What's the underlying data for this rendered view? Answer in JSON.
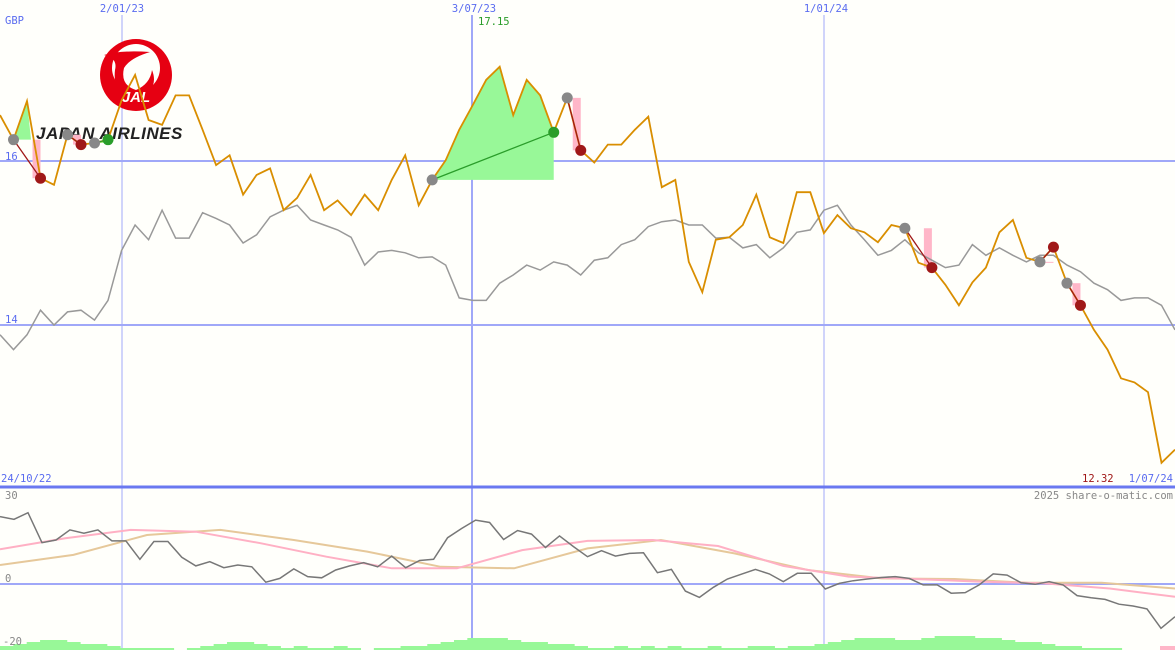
{
  "chart_data": {
    "type": "line",
    "currency_label": "GBP",
    "x_start_label": "24/10/22",
    "x_end_label": "1/07/24",
    "x_tick_labels": [
      "2/01/23",
      "3/07/23",
      "1/01/24"
    ],
    "y_tick_labels": [
      "16",
      "14"
    ],
    "y_ticks": [
      16,
      14
    ],
    "high_label": "17.15",
    "last_label": "12.32",
    "watermark": "2025 share-o-matic.com",
    "colors": {
      "price": "#d98e00",
      "comparison": "#999999",
      "buy": "#2a9d2a",
      "sell": "#a01818",
      "neutral": "#888888",
      "gain_fill": "#98f898",
      "loss_fill": "#ffb6c8",
      "grid": "#a0a8f8",
      "axis": "#6a78f0"
    },
    "price": [
      16.56,
      16.26,
      16.73,
      15.79,
      15.71,
      16.32,
      16.2,
      16.22,
      16.26,
      16.74,
      17.05,
      16.5,
      16.44,
      16.8,
      16.8,
      16.38,
      15.95,
      16.07,
      15.59,
      15.83,
      15.91,
      15.4,
      15.55,
      15.83,
      15.4,
      15.52,
      15.34,
      15.59,
      15.4,
      15.77,
      16.07,
      15.46,
      15.77,
      16.01,
      16.38,
      16.68,
      16.99,
      17.15,
      16.56,
      16.99,
      16.8,
      16.35,
      16.77,
      16.13,
      15.98,
      16.2,
      16.2,
      16.38,
      16.54,
      15.68,
      15.77,
      14.77,
      14.4,
      15.04,
      15.07,
      15.22,
      15.59,
      15.07,
      15.0,
      15.62,
      15.62,
      15.12,
      15.34,
      15.18,
      15.13,
      15.01,
      15.22,
      15.18,
      14.76,
      14.7,
      14.49,
      14.24,
      14.52,
      14.7,
      15.13,
      15.28,
      14.82,
      14.77,
      14.95,
      14.51,
      14.24,
      13.94,
      13.7,
      13.35,
      13.3,
      13.18,
      12.32,
      12.48
    ],
    "comparison": [
      13.88,
      13.7,
      13.88,
      14.18,
      14.0,
      14.16,
      14.18,
      14.06,
      14.3,
      14.91,
      15.22,
      15.04,
      15.4,
      15.06,
      15.06,
      15.37,
      15.3,
      15.22,
      15.0,
      15.1,
      15.32,
      15.4,
      15.46,
      15.28,
      15.22,
      15.16,
      15.07,
      14.73,
      14.89,
      14.91,
      14.88,
      14.82,
      14.83,
      14.73,
      14.33,
      14.3,
      14.3,
      14.51,
      14.61,
      14.73,
      14.67,
      14.77,
      14.73,
      14.61,
      14.79,
      14.82,
      14.98,
      15.04,
      15.2,
      15.26,
      15.28,
      15.22,
      15.22,
      15.06,
      15.07,
      14.94,
      14.98,
      14.82,
      14.94,
      15.13,
      15.16,
      15.4,
      15.46,
      15.22,
      15.04,
      14.85,
      14.91,
      15.04,
      14.88,
      14.79,
      14.7,
      14.73,
      14.98,
      14.85,
      14.94,
      14.85,
      14.77,
      14.85,
      14.85,
      14.73,
      14.65,
      14.51,
      14.43,
      14.3,
      14.33,
      14.33,
      14.24,
      13.94
    ],
    "signals": [
      {
        "from": 1,
        "to": 3,
        "type": "sell"
      },
      {
        "from": 5,
        "to": 6,
        "type": "sell"
      },
      {
        "from": 7,
        "to": 8,
        "type": "buy"
      },
      {
        "from": 32,
        "to": 41,
        "type": "buy"
      },
      {
        "from": 42,
        "to": 43,
        "type": "sell"
      },
      {
        "from": 67,
        "to": 69,
        "type": "sell"
      },
      {
        "from": 77,
        "to": 78,
        "type": "sell"
      },
      {
        "from": 79,
        "to": 80,
        "type": "sell"
      }
    ],
    "oscillator": {
      "y_tick_labels": [
        "30",
        "0",
        "-20"
      ],
      "ylim": [
        -20,
        30
      ],
      "momentum": [
        22.7,
        21.8,
        24.0,
        13.9,
        14.8,
        18.2,
        17.1,
        18.2,
        14.5,
        14.5,
        8.3,
        14.3,
        14.3,
        9.0,
        6.1,
        7.5,
        5.5,
        6.4,
        5.8,
        0.6,
        1.9,
        5.1,
        2.5,
        2.1,
        4.7,
        6.1,
        7.2,
        5.8,
        9.4,
        5.5,
        7.9,
        8.3,
        15.6,
        18.7,
        21.5,
        20.7,
        15.0,
        18.0,
        16.8,
        12.3,
        16.2,
        12.6,
        9.2,
        11.2,
        9.4,
        10.3,
        10.5,
        3.8,
        4.9,
        -2.4,
        -4.5,
        -1.1,
        1.7,
        3.3,
        4.9,
        3.4,
        0.8,
        3.6,
        3.6,
        -1.7,
        0.2,
        1.1,
        1.7,
        2.2,
        2.5,
        1.9,
        -0.3,
        -0.3,
        -3.1,
        -2.9,
        -0.3,
        3.4,
        3.0,
        0.4,
        -0.1,
        0.8,
        -0.3,
        -3.9,
        -4.6,
        -5.2,
        -6.8,
        -7.4,
        -8.4,
        -14.9,
        -11.0
      ],
      "fast_avg": [
        11.7,
        15.4,
        18.2,
        17.6,
        13.7,
        9.2,
        5.3,
        5.3,
        11.4,
        14.5,
        14.8,
        12.8,
        6.1,
        2.5,
        1.7,
        0.8,
        0.2,
        -1.5,
        -4.3
      ],
      "slow_avg": [
        6.4,
        9.8,
        16.5,
        18.2,
        14.8,
        10.9,
        5.8,
        5.3,
        12.0,
        14.8,
        10.3,
        4.7,
        1.9,
        1.7,
        0.4,
        0.4,
        -1.5
      ],
      "colors": {
        "momentum": "#777777",
        "fast_avg": "#ffb0c4",
        "slow_avg": "#e6c89a",
        "volume": "#98f898"
      },
      "volume": [
        2,
        3,
        4,
        5,
        5,
        4,
        3,
        3,
        2,
        1,
        1,
        1,
        1,
        0,
        1,
        2,
        3,
        4,
        4,
        3,
        2,
        1,
        2,
        1,
        1,
        2,
        1,
        0,
        1,
        1,
        2,
        2,
        3,
        4,
        5,
        6,
        6,
        6,
        5,
        4,
        4,
        3,
        3,
        2,
        1,
        1,
        2,
        1,
        2,
        1,
        2,
        1,
        1,
        2,
        1,
        1,
        2,
        2,
        1,
        2,
        2,
        3,
        4,
        5,
        6,
        6,
        6,
        5,
        5,
        6,
        7,
        7,
        7,
        6,
        6,
        5,
        4,
        4,
        3,
        2,
        2,
        1,
        1,
        1,
        0,
        0,
        0,
        2
      ]
    }
  },
  "logo": {
    "text": "JAPAN AIRLINES",
    "mark": "JAL"
  }
}
